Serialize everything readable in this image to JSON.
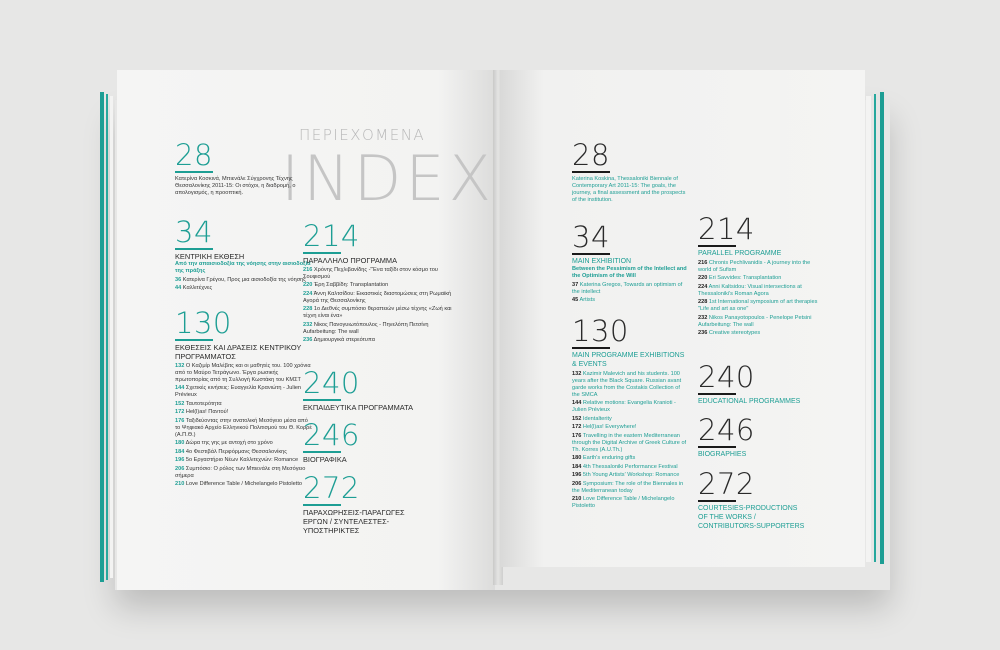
{
  "title": {
    "small": "ΠΕΡΙΕΧΟΜΕΝΑ",
    "big": "INDEX"
  },
  "left": {
    "s28": {
      "num": "28",
      "text": "Κατερίνα Κοσκινά, Μπιενάλε Σύγχρονης Τέχνης Θεσσαλονίκης 2011-15: Οι στόχοι, η διαδρομή, ο απολογισμός, η προοπτική."
    },
    "s34": {
      "num": "34",
      "head": "ΚΕΝΤΡΙΚΗ ΕΚΘΕΣΗ",
      "sub": "Από την απαισιοδοξία της νόησης στην αισιοδοξία της πράξης",
      "entries": [
        [
          "36",
          "Κατερίνα Γρέγου, Προς μια αισιοδοξία της νόησης"
        ],
        [
          "44",
          "Καλλιτέχνες"
        ]
      ]
    },
    "s130": {
      "num": "130",
      "head": "ΕΚΘΕΣΕΙΣ ΚΑΙ ΔΡΑΣΕΙΣ ΚΕΝΤΡΙΚΟΥ ΠΡΟΓΡΑΜΜΑΤΟΣ",
      "entries": [
        [
          "132",
          "Ο Καζιμίρ Μαλέβιτς και οι μαθητές του. 100 χρόνια από το Μαύρο Τετράγωνο. Έργα ρωσικής πρωτοπορίας από τη Συλλογή Κωστάκη του ΚΜΣΤ"
        ],
        [
          "144",
          "Σχετικές κινήσεις: Ευαγγελία Κρανιώτη - Julien Prévieux"
        ],
        [
          "152",
          "Ταυτοτερότητα"
        ],
        [
          "172",
          "Hel(l)as! Παντού!"
        ],
        [
          "176",
          "Ταξιδεύοντας στην ανατολική Μεσόγειο μέσα από το Ψηφιακό Αρχείο Ελληνικού Πολιτισμού του Θ. Κορρέ (Α.Π.Θ.)"
        ],
        [
          "180",
          "Δώρα της γης με αντοχή στο χρόνο"
        ],
        [
          "184",
          "4ο Φεστιβάλ Περφόρμανς Θεσσαλονίκης"
        ],
        [
          "196",
          "5ο Εργαστήριο Νέων Καλλιτεχνών: Romance"
        ],
        [
          "206",
          "Συμπόσιο: Ο ρόλος των Μπιενάλε στη Μεσόγειο σήμερα"
        ],
        [
          "210",
          "Love Difference Table / Michelangelo Pistoletto"
        ]
      ]
    },
    "s214": {
      "num": "214",
      "head": "ΠΑΡΑΛΛΗΛΟ ΠΡΟΓΡΑΜΜΑ",
      "entries": [
        [
          "216",
          "Χρόνης Πεχλιβανίδης -\"Ένα ταξίδι στον κόσμο του Σουφισμού"
        ],
        [
          "220",
          "Έρη Σαββίδη: Transplantation"
        ],
        [
          "224",
          "Άννη Καλτσίδου: Εικαστικές διαστομώσεις στη Ρωμαϊκή Αγορά της Θεσσαλονίκης"
        ],
        [
          "228",
          "1ο Διεθνές συμπόσιο θεραπειών μέσω τέχνης «Ζωή και τέχνη είναι ένα»"
        ],
        [
          "232",
          "Νίκος Πανογυιωτόπουλος - Πηνελόπη Πετσίνη Aufarbeitung: The wall"
        ],
        [
          "236",
          "Δημιουργικά στερεότυπα"
        ]
      ]
    },
    "s240": {
      "num": "240",
      "head": "ΕΚΠΑΙΔΕΥΤΙΚΑ ΠΡΟΓΡΑΜΜΑΤΑ"
    },
    "s246": {
      "num": "246",
      "head": "ΒΙΟΓΡΑΦΙΚΑ"
    },
    "s272": {
      "num": "272",
      "head": "ΠΑΡΑΧΩΡΗΣΕΙΣ-ΠΑΡΑΓΩΓΕΣ ΕΡΓΩΝ / ΣΥΝΤΕΛΕΣΤΕΣ-ΥΠΟΣΤΗΡΙΚΤΕΣ"
    }
  },
  "right": {
    "s28": {
      "num": "28",
      "text": "Katerina Koskina, Thessaloniki Biennale of Contemporary Art 2011-15: The goals, the journey, a final assessment and the prospects of the institution."
    },
    "s34": {
      "num": "34",
      "head": "MAIN EXHIBITION",
      "sub": "Between the Pessimism of the Intellect and the Optimism of the Will",
      "entries": [
        [
          "37",
          "Katerina Gregos, Towards an optimism of the intellect"
        ],
        [
          "45",
          "Artists"
        ]
      ]
    },
    "s130": {
      "num": "130",
      "head": "MAIN PROGRAMME EXHIBITIONS & EVENTS",
      "entries": [
        [
          "132",
          "Kazimir Malevich and his students. 100 years after the Black Square. Russian avant garde works from the Costakis Collection of the SMCA"
        ],
        [
          "144",
          "Relative motions: Evangelia Kranioti - Julien Prévieux"
        ],
        [
          "152",
          "Identalterity"
        ],
        [
          "172",
          "Hel(l)as! Everywhere!"
        ],
        [
          "176",
          "Travelling in the eastern Mediterranean through the Digital Archive of Greek Culture of Th. Korres (A.U.Th.)"
        ],
        [
          "180",
          "Earth's enduring gifts"
        ],
        [
          "184",
          "4th Thessaloniki Performance Festival"
        ],
        [
          "196",
          "5th Young Artists' Workshop: Romance"
        ],
        [
          "206",
          "Symposium: The role of the Biennales in the Mediterranean today"
        ],
        [
          "210",
          "Love Difference Table / Michelangelo Pistoletto"
        ]
      ]
    },
    "s214": {
      "num": "214",
      "head": "PARALLEL PROGRAMME",
      "entries": [
        [
          "216",
          "Chronis Pechlivanidis - A journey into the world of Sufism"
        ],
        [
          "220",
          "Eri Savvides: Transplantation"
        ],
        [
          "224",
          "Anni Kaltsidou: Visual intersections at Thessaloniki's Roman Agora"
        ],
        [
          "228",
          "1st International symposium of art therapies \"Life and art as one\""
        ],
        [
          "232",
          "Nikos Panayotopoulos - Penelope Petsini Aufarbeitung: The wall"
        ],
        [
          "236",
          "Creative stereotypes"
        ]
      ]
    },
    "s240": {
      "num": "240",
      "head": "EDUCATIONAL PROGRAMMES"
    },
    "s246": {
      "num": "246",
      "head": "BIOGRAPHIES"
    },
    "s272": {
      "num": "272",
      "head": "COURTESIES-PRODUCTIONS OF THE WORKS / CONTRIBUTORS-SUPPORTERS"
    }
  }
}
